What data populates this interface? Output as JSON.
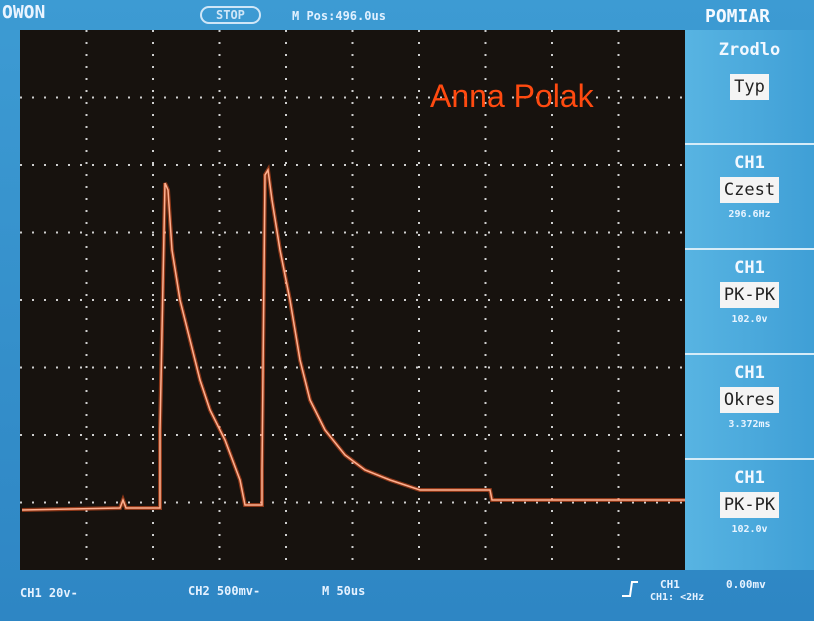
{
  "header": {
    "brand": "OWON",
    "status": "STOP",
    "position": "M Pos:496.0us",
    "menu_title": "POMIAR"
  },
  "watermark": "Anna Polak",
  "sidebar": {
    "source_label": "Zrodlo",
    "type_button": "Typ",
    "measurements": [
      {
        "channel": "CH1",
        "name": "Czest",
        "value": "296.6Hz"
      },
      {
        "channel": "CH1",
        "name": "PK-PK",
        "value": "102.0v"
      },
      {
        "channel": "CH1",
        "name": "Okres",
        "value": "3.372ms"
      },
      {
        "channel": "CH1",
        "name": "PK-PK",
        "value": "102.0v"
      }
    ]
  },
  "footer": {
    "ch1_scale": "CH1 20v-",
    "ch2_scale": "CH2 500mv-",
    "timebase": "M 50us",
    "trigger_channel": "CH1",
    "trigger_level": "0.00mv",
    "frequency": "CH1: <2Hz"
  }
}
